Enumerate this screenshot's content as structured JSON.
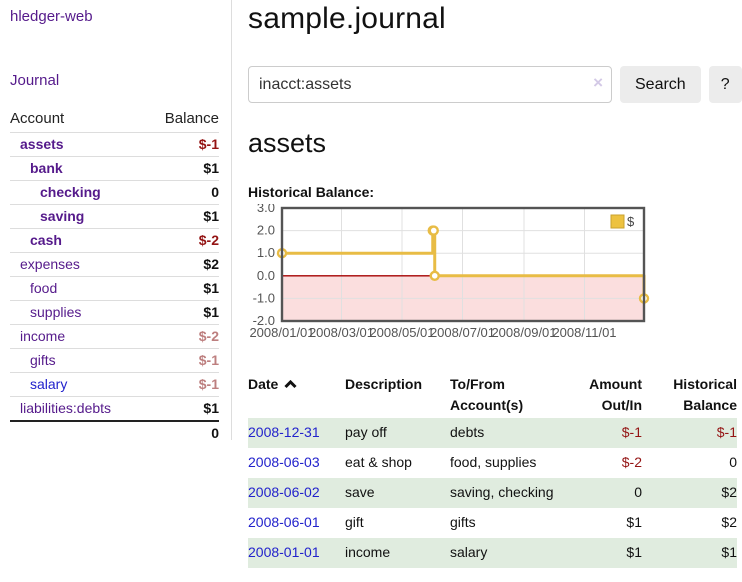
{
  "app": {
    "brand": "hledger-web",
    "nav_journal": "Journal"
  },
  "sidebar": {
    "header": {
      "account": "Account",
      "balance": "Balance"
    },
    "accounts": [
      {
        "name": "assets",
        "balance": "$-1"
      },
      {
        "name": "bank",
        "balance": "$1"
      },
      {
        "name": "checking",
        "balance": "0"
      },
      {
        "name": "saving",
        "balance": "$1"
      },
      {
        "name": "cash",
        "balance": "$-2"
      },
      {
        "name": "expenses",
        "balance": "$2"
      },
      {
        "name": "food",
        "balance": "$1"
      },
      {
        "name": "supplies",
        "balance": "$1"
      },
      {
        "name": "income",
        "balance": "$-2"
      },
      {
        "name": "gifts",
        "balance": "$-1"
      },
      {
        "name": "salary",
        "balance": "$-1"
      },
      {
        "name": "liabilities:debts",
        "balance": "$1"
      }
    ],
    "total": "0"
  },
  "header": {
    "title": "sample.journal"
  },
  "search": {
    "value": "inacct:assets",
    "clear_icon": "×",
    "button": "Search",
    "help_button": "?"
  },
  "account_page": {
    "heading": "assets",
    "chart_label": "Historical Balance:"
  },
  "chart_data": {
    "type": "line",
    "title": "Historical Balance",
    "step": true,
    "series": [
      {
        "name": "$",
        "color": "#EDC240",
        "points": [
          [
            "2008-01-01",
            1
          ],
          [
            "2008-06-01",
            2
          ],
          [
            "2008-06-02",
            2
          ],
          [
            "2008-06-03",
            0
          ],
          [
            "2008-12-31",
            -1
          ]
        ]
      }
    ],
    "xlim": [
      "2008-01-01",
      "2008-12-31"
    ],
    "ylim": [
      -2,
      3
    ],
    "yticks": [
      "-2.0",
      "-1.0",
      "0.0",
      "1.0",
      "2.0",
      "3.0"
    ],
    "xticks": [
      "2008/01/01",
      "2008/03/01",
      "2008/05/01",
      "2008/07/01",
      "2008/09/01",
      "2008/11/01"
    ],
    "legend": "$",
    "legend_position": "top-right",
    "grid": true,
    "colors": {
      "border": "#545454",
      "gridline": "#e0e0e0",
      "tick_label": "#545454",
      "negative_region": "#fbdede",
      "zero_line": "#a40000",
      "marker_fill": "#ffffff",
      "line": "#E8BC45"
    }
  },
  "register_table": {
    "columns": {
      "date": "Date",
      "description": "Description",
      "accounts": "To/From Account(s)",
      "amount": "Amount Out/In",
      "balance": "Historical Balance"
    },
    "sort_icon": "chevron-up",
    "rows": [
      {
        "date": "2008-12-31",
        "description": "pay off",
        "accounts": "debts",
        "amount": "$-1",
        "balance": "$-1"
      },
      {
        "date": "2008-06-03",
        "description": "eat & shop",
        "accounts": "food, supplies",
        "amount": "$-2",
        "balance": "0"
      },
      {
        "date": "2008-06-02",
        "description": "save",
        "accounts": "saving, checking",
        "amount": "0",
        "balance": "$2"
      },
      {
        "date": "2008-06-01",
        "description": "gift",
        "accounts": "gifts",
        "amount": "$1",
        "balance": "$2"
      },
      {
        "date": "2008-01-01",
        "description": "income",
        "accounts": "salary",
        "amount": "$1",
        "balance": "$1"
      }
    ]
  }
}
